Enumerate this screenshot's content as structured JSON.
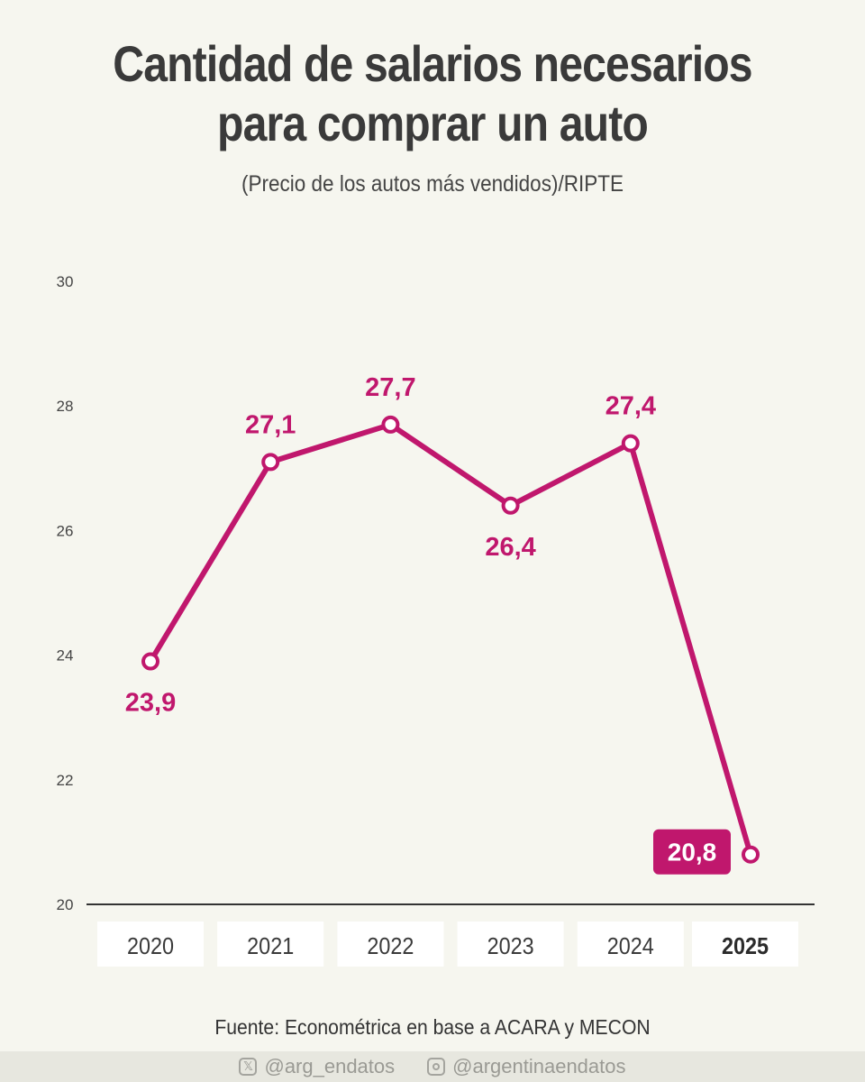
{
  "title_line1": "Cantidad de salarios necesarios",
  "title_line2": "para comprar un auto",
  "subtitle": "(Precio de los autos más vendidos)/RIPTE",
  "source": "Fuente: Econométrica en base a ACARA y MECON",
  "footer": {
    "twitter_handle": "@arg_endatos",
    "instagram_handle": "@argentinaendatos",
    "twitter_icon": "x-logo-icon",
    "instagram_icon": "instagram-icon"
  },
  "colors": {
    "line": "#c0176d",
    "highlight_label_bg": "#c0176d",
    "axis": "#333333",
    "background": "#f6f6ef"
  },
  "chart_data": {
    "type": "line",
    "categories": [
      "2020",
      "2021",
      "2022",
      "2023",
      "2024",
      "2025"
    ],
    "values": [
      23.9,
      27.1,
      27.7,
      26.4,
      27.4,
      20.8
    ],
    "value_labels": [
      "23,9",
      "27,1",
      "27,7",
      "26,4",
      "27,4",
      "20,8"
    ],
    "label_positions": [
      "below",
      "above",
      "above",
      "below",
      "above",
      "left-boxed"
    ],
    "highlighted_category": "2025",
    "yticks": [
      "20",
      "22",
      "24",
      "26",
      "28",
      "30"
    ],
    "ylim": [
      20,
      30
    ],
    "grid": false
  }
}
